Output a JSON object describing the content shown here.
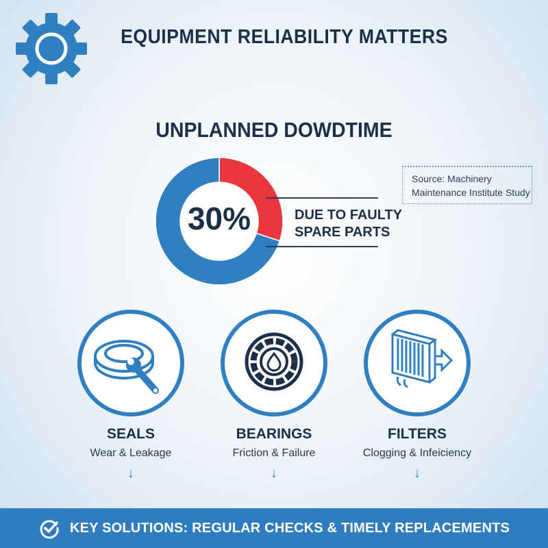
{
  "header": {
    "title": "EQUIPMENT RELIABILITY MATTERS",
    "logo_icon": "gear-icon"
  },
  "section": {
    "title": "UNPLANNED DOWDTIME"
  },
  "chart_data": {
    "type": "pie",
    "style": "donut",
    "categories": [
      "Due to faulty spare parts",
      "Other"
    ],
    "values": [
      30,
      70
    ],
    "colors": [
      "#e8383d",
      "#2f7fc1"
    ],
    "center_label": "30%"
  },
  "callout": {
    "line1": "DUE TO FAULTY",
    "line2": "SPARE PARTS"
  },
  "source": {
    "line1": "Source: Machinery",
    "line2": "Maintenance Institute Study"
  },
  "parts": [
    {
      "title": "SEALS",
      "subtitle": "Wear & Leakage",
      "icon": "seal-wrench-icon"
    },
    {
      "title": "BEARINGS",
      "subtitle": "Friction & Failure",
      "icon": "bearing-icon"
    },
    {
      "title": "FILTERS",
      "subtitle": "Clogging & Infeiciency",
      "icon": "filter-icon"
    }
  ],
  "footer": {
    "text": "KEY SOLUTIONS: REGULAR CHECKS & TIMELY REPLACEMENTS",
    "icon": "check-circle-icon"
  }
}
